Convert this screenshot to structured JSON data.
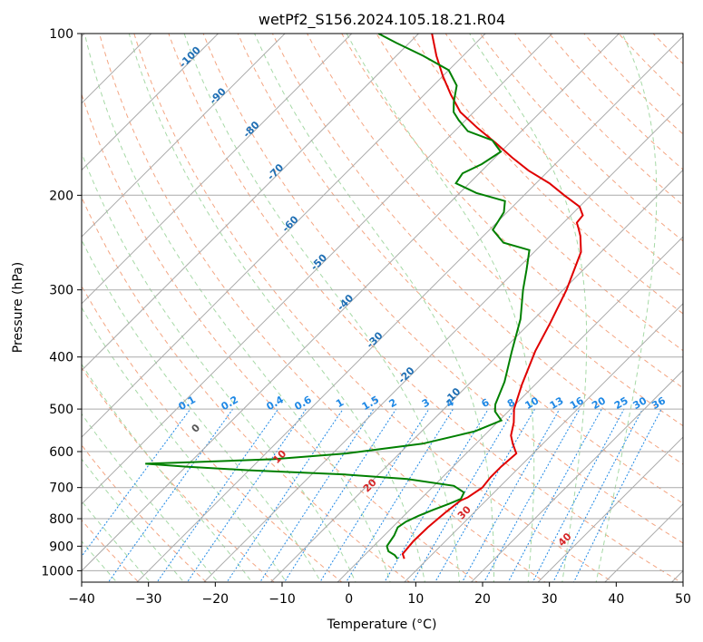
{
  "chart_data": {
    "type": "line",
    "title": "wetPf2_S156.2024.105.18.21.R04",
    "xlabel": "Temperature (°C)",
    "ylabel": "Pressure (hPa)",
    "xlim": [
      -40,
      50
    ],
    "ylim": [
      1050,
      100
    ],
    "y_scale": "log",
    "grid": true,
    "x_ticks": [
      -40,
      -30,
      -20,
      -10,
      0,
      10,
      20,
      30,
      40,
      50
    ],
    "y_ticks": [
      100,
      200,
      300,
      400,
      500,
      600,
      700,
      800,
      900,
      1000
    ],
    "colors": {
      "temperature": "#e00000",
      "dewpoint": "#008000",
      "grid": "#aaaaaa",
      "isotherm": "#aaaaaa",
      "dry_adiabat": "#f4a582",
      "moist_adiabat": "#a6d9a6",
      "mixing_ratio": "#1e88e5",
      "isotherm_label": "#1f6fb4",
      "dry_adiabat_label": "#d62728"
    },
    "series": [
      {
        "name": "",
        "color": "#e00000",
        "points": [
          {
            "t": 6.5,
            "p": 950
          },
          {
            "t": 5.5,
            "p": 930
          },
          {
            "t": 5.2,
            "p": 880
          },
          {
            "t": 5.3,
            "p": 830
          },
          {
            "t": 5.7,
            "p": 780
          },
          {
            "t": 6.2,
            "p": 740
          },
          {
            "t": 6.8,
            "p": 730
          },
          {
            "t": 7.5,
            "p": 700
          },
          {
            "t": 7.2,
            "p": 670
          },
          {
            "t": 7.2,
            "p": 640
          },
          {
            "t": 7.5,
            "p": 605
          },
          {
            "t": 5.5,
            "p": 580
          },
          {
            "t": 4.0,
            "p": 560
          },
          {
            "t": 2.5,
            "p": 530
          },
          {
            "t": 0.5,
            "p": 500
          },
          {
            "t": -2.0,
            "p": 450
          },
          {
            "t": -5.0,
            "p": 390
          },
          {
            "t": -7.0,
            "p": 345
          },
          {
            "t": -9.5,
            "p": 300
          },
          {
            "t": -13.0,
            "p": 255
          },
          {
            "t": -15.5,
            "p": 238
          },
          {
            "t": -17.0,
            "p": 230
          },
          {
            "t": -18.0,
            "p": 225
          },
          {
            "t": -18.2,
            "p": 218
          },
          {
            "t": -20.0,
            "p": 210
          },
          {
            "t": -24.0,
            "p": 200
          },
          {
            "t": -28.0,
            "p": 190
          },
          {
            "t": -33.0,
            "p": 180
          },
          {
            "t": -37.5,
            "p": 170
          },
          {
            "t": -42.0,
            "p": 160
          },
          {
            "t": -47.0,
            "p": 150
          },
          {
            "t": -52.0,
            "p": 140
          },
          {
            "t": -56.0,
            "p": 130
          },
          {
            "t": -60.0,
            "p": 120
          },
          {
            "t": -64.0,
            "p": 110
          },
          {
            "t": -68.0,
            "p": 100
          }
        ]
      },
      {
        "name": "",
        "color": "#008000",
        "points": [
          {
            "t": 5.5,
            "p": 950
          },
          {
            "t": 4.5,
            "p": 935
          },
          {
            "t": 3.0,
            "p": 920
          },
          {
            "t": 2.0,
            "p": 900
          },
          {
            "t": 1.5,
            "p": 860
          },
          {
            "t": 0.8,
            "p": 830
          },
          {
            "t": 1.2,
            "p": 810
          },
          {
            "t": 2.2,
            "p": 790
          },
          {
            "t": 3.5,
            "p": 770
          },
          {
            "t": 5.0,
            "p": 750
          },
          {
            "t": 6.0,
            "p": 735
          },
          {
            "t": 5.5,
            "p": 715
          },
          {
            "t": 3.0,
            "p": 695
          },
          {
            "t": -5.0,
            "p": 675
          },
          {
            "t": -15.0,
            "p": 662
          },
          {
            "t": -30.0,
            "p": 650
          },
          {
            "t": -40.0,
            "p": 640
          },
          {
            "t": -46.5,
            "p": 632
          },
          {
            "t": -40.0,
            "p": 628
          },
          {
            "t": -28.0,
            "p": 620
          },
          {
            "t": -18.0,
            "p": 605
          },
          {
            "t": -8.0,
            "p": 580
          },
          {
            "t": -2.0,
            "p": 550
          },
          {
            "t": 0.3,
            "p": 525
          },
          {
            "t": -2.0,
            "p": 505
          },
          {
            "t": -3.0,
            "p": 490
          },
          {
            "t": -5.0,
            "p": 445
          },
          {
            "t": -8.5,
            "p": 390
          },
          {
            "t": -12.0,
            "p": 340
          },
          {
            "t": -16.0,
            "p": 300
          },
          {
            "t": -18.5,
            "p": 275
          },
          {
            "t": -21.0,
            "p": 253
          },
          {
            "t": -26.0,
            "p": 245
          },
          {
            "t": -29.5,
            "p": 232
          },
          {
            "t": -30.5,
            "p": 215
          },
          {
            "t": -32.0,
            "p": 205
          },
          {
            "t": -37.5,
            "p": 198
          },
          {
            "t": -42.0,
            "p": 190
          },
          {
            "t": -42.5,
            "p": 182
          },
          {
            "t": -41.0,
            "p": 175
          },
          {
            "t": -40.0,
            "p": 166
          },
          {
            "t": -43.0,
            "p": 158
          },
          {
            "t": -48.0,
            "p": 152
          },
          {
            "t": -51.0,
            "p": 145
          },
          {
            "t": -53.0,
            "p": 140
          },
          {
            "t": -54.5,
            "p": 134
          },
          {
            "t": -56.5,
            "p": 125
          },
          {
            "t": -60.0,
            "p": 117
          },
          {
            "t": -66.0,
            "p": 110
          },
          {
            "t": -72.0,
            "p": 104
          },
          {
            "t": -76.0,
            "p": 100
          }
        ]
      }
    ],
    "isotherm_labels": [
      "-100",
      "-90",
      "-80",
      "-70",
      "-60",
      "-50",
      "-40",
      "-30",
      "-20",
      "-10"
    ],
    "mixing_ratio_labels": [
      "0.1",
      "0.2",
      "0.4",
      "0.6",
      "1",
      "1.5",
      "2",
      "3",
      "4",
      "6",
      "8",
      "10",
      "13",
      "16",
      "20",
      "25",
      "30",
      "36"
    ],
    "dry_adiabat_labels": [
      "0",
      "10",
      "20",
      "30",
      "40"
    ]
  }
}
